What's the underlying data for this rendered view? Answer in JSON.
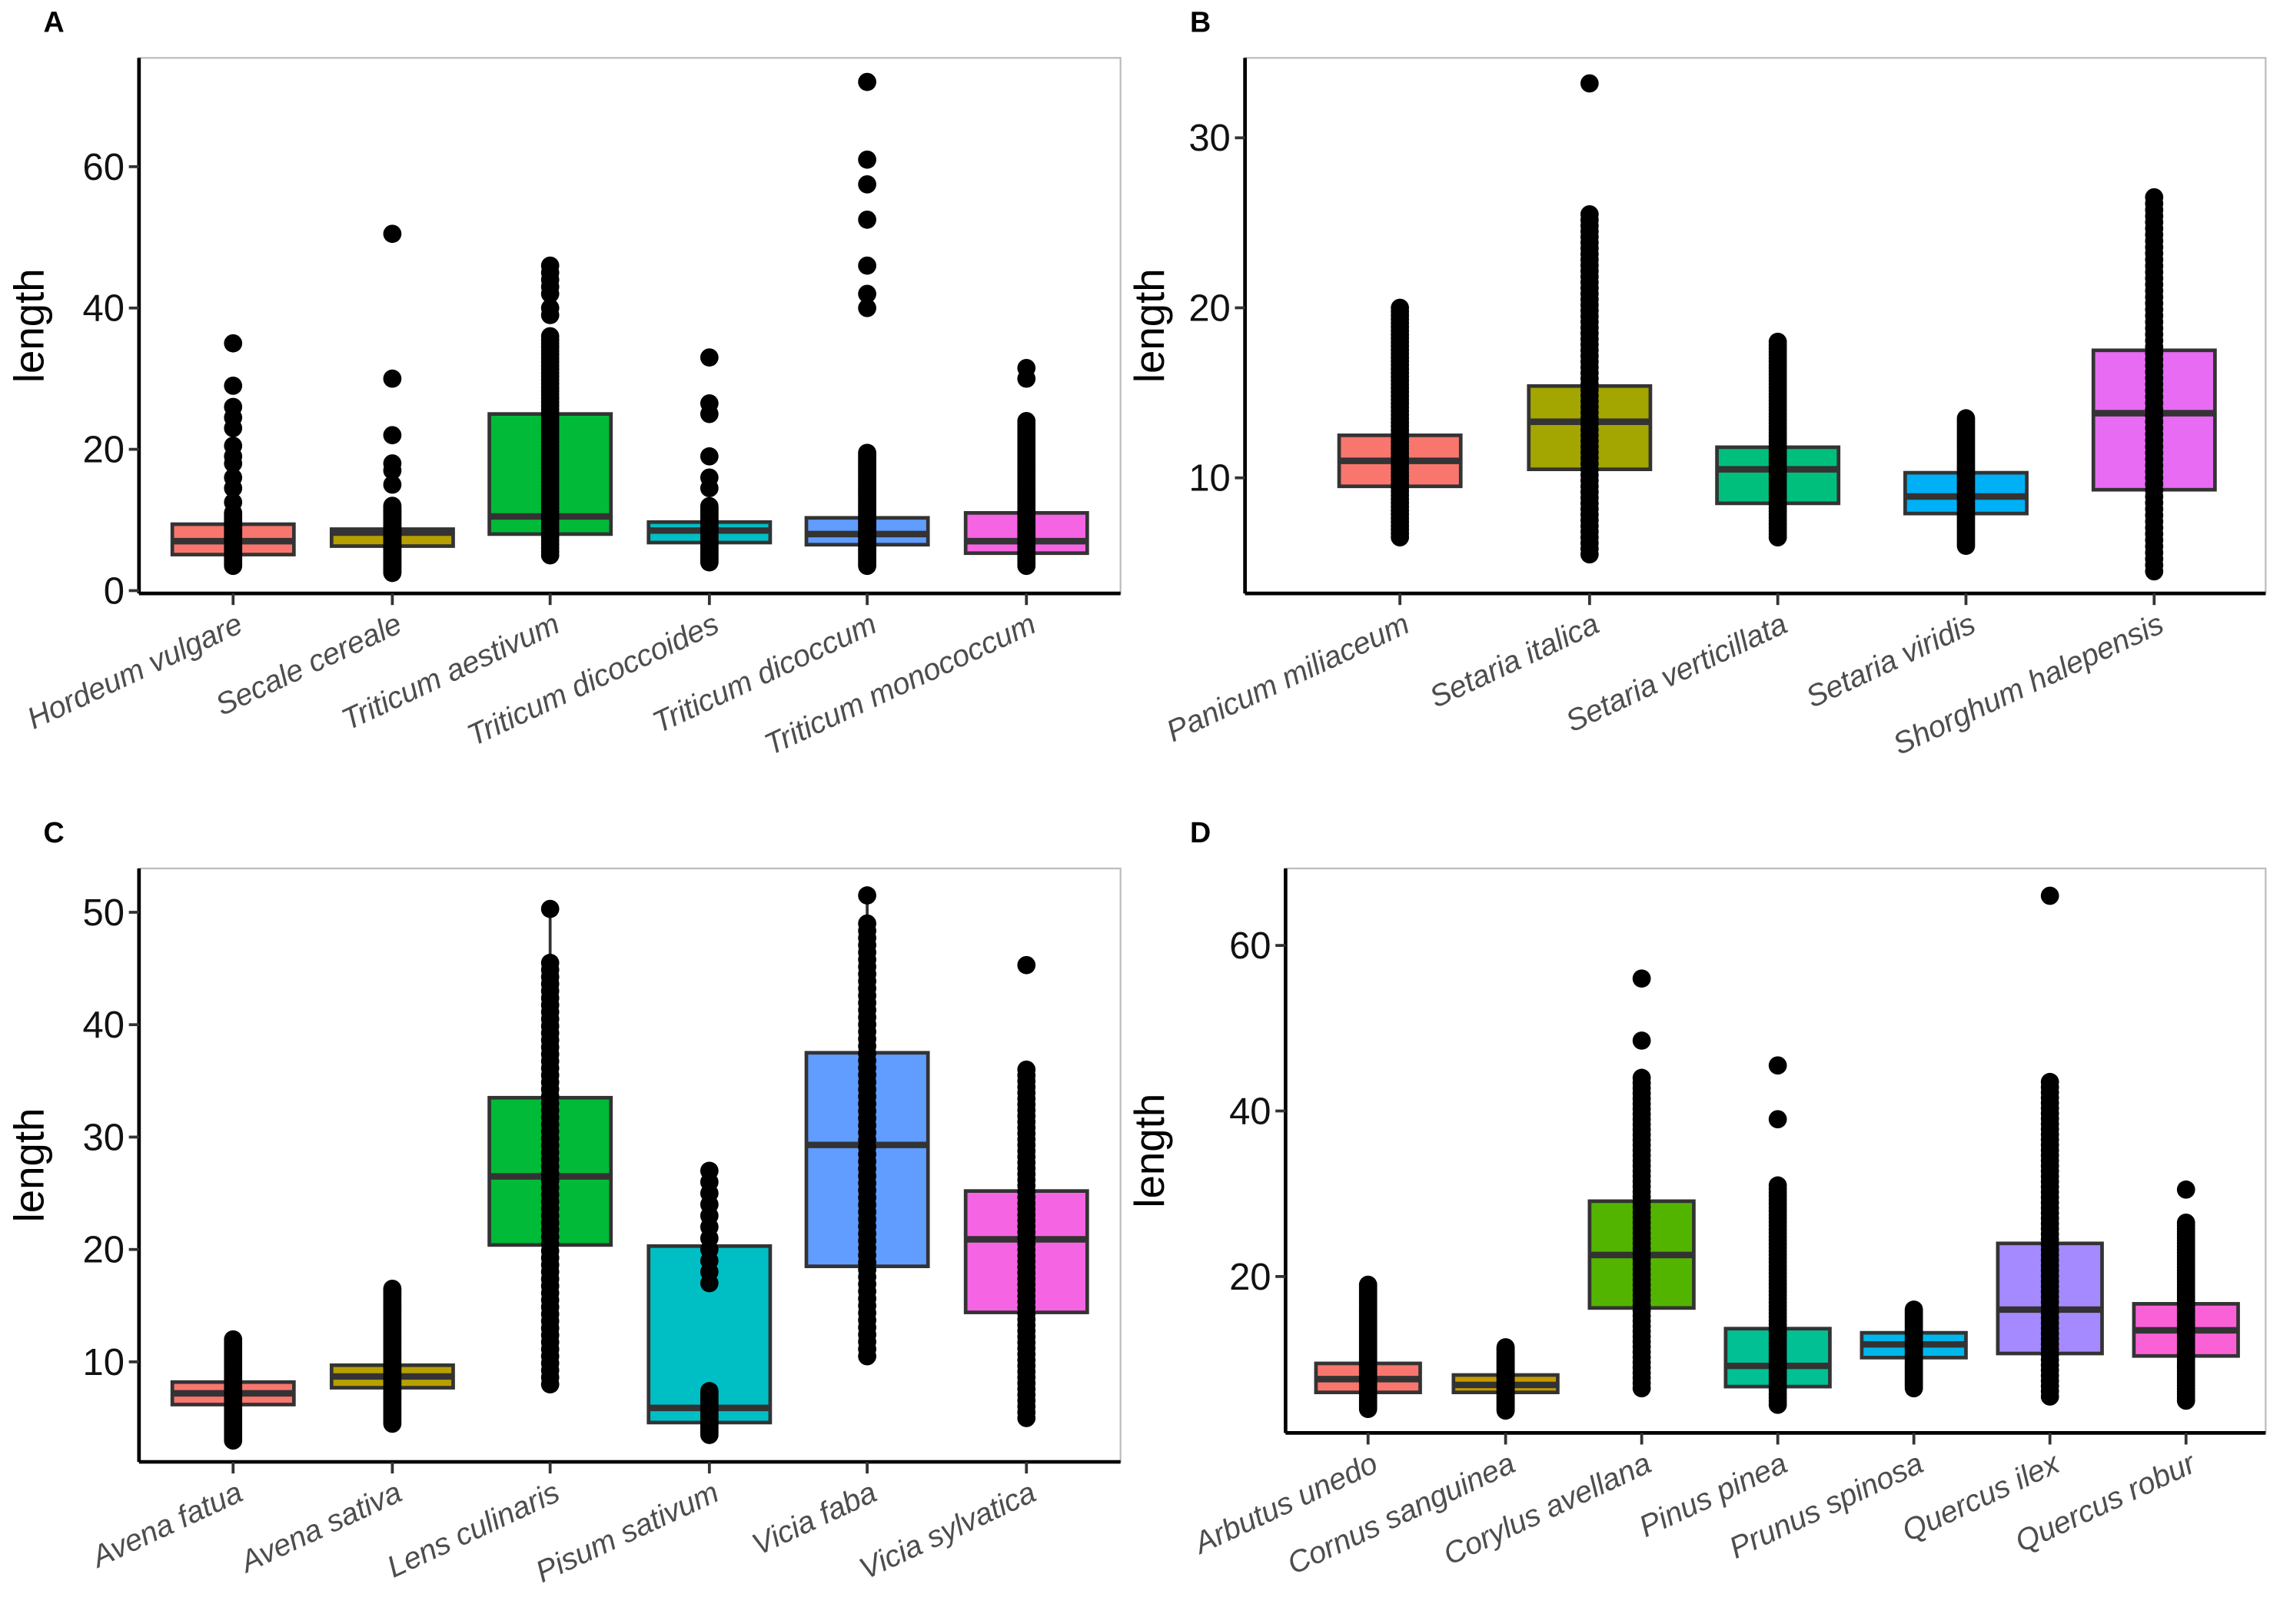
{
  "chart_data": [
    {
      "panel": "A",
      "type": "box",
      "ylabel": "length",
      "xlabel": "",
      "ylim": [
        -0.4,
        75.4
      ],
      "yticks": [
        0,
        20,
        40,
        60
      ],
      "grid": false,
      "categories": [
        "Hordeum vulgare",
        "Secale cereale",
        "Triticum aestivum",
        "Triticum dicoccoides",
        "Triticum dicoccum",
        "Triticum monococcum"
      ],
      "colors": [
        "#F8766D",
        "#B79F00",
        "#00BA38",
        "#00BFC4",
        "#619CFF",
        "#F564E3"
      ],
      "boxes": [
        {
          "q1": 5.1,
          "median": 7,
          "q3": 9.4,
          "whisker_low": 3.5,
          "whisker_high": 11,
          "points_dense": [
            3.5,
            11
          ],
          "points": [
            12.5,
            14.5,
            16,
            18,
            19,
            20.5,
            23,
            24.5,
            26,
            29,
            35
          ]
        },
        {
          "q1": 6.3,
          "median": 8.2,
          "q3": 8.7,
          "whisker_low": 2.5,
          "whisker_high": 12,
          "points_dense": [
            2.5,
            12
          ],
          "points": [
            15,
            17,
            18,
            22,
            30,
            50.5
          ]
        },
        {
          "q1": 8,
          "median": 10.5,
          "q3": 25,
          "whisker_low": 5,
          "whisker_high": 37,
          "points_dense": [
            5,
            36
          ],
          "points": [
            39,
            40,
            42,
            43,
            44,
            45,
            46
          ]
        },
        {
          "q1": 6.8,
          "median": 8.5,
          "q3": 9.7,
          "whisker_low": 4,
          "whisker_high": 12,
          "points_dense": [
            4,
            12
          ],
          "points": [
            14.5,
            16,
            19,
            25,
            26.5,
            33
          ]
        },
        {
          "q1": 6.5,
          "median": 8,
          "q3": 10.3,
          "whisker_low": 3.5,
          "whisker_high": 15.5,
          "points_dense": [
            3.5,
            19.5
          ],
          "points": [
            40,
            42,
            46,
            52.5,
            57.5,
            61,
            72
          ]
        },
        {
          "q1": 5.3,
          "median": 7,
          "q3": 11,
          "whisker_low": 3.5,
          "whisker_high": 19,
          "points_dense": [
            3.5,
            24
          ],
          "points": [
            30,
            31.5
          ]
        }
      ]
    },
    {
      "panel": "B",
      "type": "box",
      "ylabel": "length",
      "xlabel": "",
      "ylim": [
        3.2,
        34.7
      ],
      "yticks": [
        10,
        20,
        30
      ],
      "grid": false,
      "categories": [
        "Panicum miliaceum",
        "Setaria italica",
        "Setaria verticillata",
        "Setaria viridis",
        "Shorghum halepensis"
      ],
      "colors": [
        "#F8766D",
        "#A3A500",
        "#00BF7D",
        "#00B0F6",
        "#E76BF3"
      ],
      "boxes": [
        {
          "q1": 9.5,
          "median": 11,
          "q3": 12.5,
          "whisker_low": 6.5,
          "whisker_high": 17,
          "points_dense": [
            6.5,
            20
          ],
          "points": []
        },
        {
          "q1": 10.5,
          "median": 13.3,
          "q3": 15.4,
          "whisker_low": 5.5,
          "whisker_high": 22.5,
          "points_dense": [
            5.5,
            25.5
          ],
          "points": [
            33.2
          ]
        },
        {
          "q1": 8.5,
          "median": 10.5,
          "q3": 11.8,
          "whisker_low": 6.5,
          "whisker_high": 16.5,
          "points_dense": [
            6.5,
            18
          ],
          "points": []
        },
        {
          "q1": 7.9,
          "median": 8.9,
          "q3": 10.3,
          "whisker_low": 6,
          "whisker_high": 13.5,
          "points_dense": [
            6,
            13.5
          ],
          "points": []
        },
        {
          "q1": 9.3,
          "median": 13.8,
          "q3": 17.5,
          "whisker_low": 4.5,
          "whisker_high": 26.5,
          "points_dense": [
            4.5,
            26.5
          ],
          "points": []
        }
      ]
    },
    {
      "panel": "C",
      "type": "box",
      "ylabel": "length",
      "xlabel": "",
      "ylim": [
        1.1,
        53.9
      ],
      "yticks": [
        10,
        20,
        30,
        40,
        50
      ],
      "grid": false,
      "categories": [
        "Avena fatua",
        "Avena sativa",
        "Lens culinaris",
        "Pisum sativum",
        "Vicia faba",
        "Vicia sylvatica"
      ],
      "colors": [
        "#F8766D",
        "#B79F00",
        "#00BA38",
        "#00BFC4",
        "#619CFF",
        "#F564E3"
      ],
      "boxes": [
        {
          "q1": 6.2,
          "median": 7.2,
          "q3": 8.2,
          "whisker_low": 3,
          "whisker_high": 11.5,
          "points_dense": [
            3,
            12
          ],
          "points": []
        },
        {
          "q1": 7.7,
          "median": 8.7,
          "q3": 9.7,
          "whisker_low": 4.5,
          "whisker_high": 12.5,
          "points_dense": [
            4.5,
            16.5
          ],
          "points": []
        },
        {
          "q1": 20.4,
          "median": 26.5,
          "q3": 33.5,
          "whisker_low": 8,
          "whisker_high": 50.3,
          "points_dense": [
            8,
            45.5
          ],
          "points": [
            50.3
          ]
        },
        {
          "q1": 4.6,
          "median": 5.9,
          "q3": 20.3,
          "whisker_low": 3.5,
          "whisker_high": 27,
          "points_dense": [
            3.5,
            7.5
          ],
          "points": [
            17,
            18,
            19,
            20,
            21,
            22,
            23,
            24,
            25,
            26,
            27
          ]
        },
        {
          "q1": 18.5,
          "median": 29.3,
          "q3": 37.5,
          "whisker_low": 10.5,
          "whisker_high": 51.5,
          "points_dense": [
            10.5,
            49
          ],
          "points": [
            51.5
          ]
        },
        {
          "q1": 14.4,
          "median": 20.9,
          "q3": 25.2,
          "whisker_low": 5,
          "whisker_high": 36,
          "points_dense": [
            5,
            36
          ],
          "points": [
            45.3
          ]
        }
      ]
    },
    {
      "panel": "D",
      "type": "box",
      "ylabel": "length",
      "xlabel": "",
      "ylim": [
        1.1,
        69.3
      ],
      "yticks": [
        20,
        40,
        60
      ],
      "grid": false,
      "categories": [
        "Arbutus unedo",
        "Cornus sanguinea",
        "Corylus avellana",
        "Pinus pinea",
        "Prunus spinosa",
        "Quercus ilex",
        "Quercus robur"
      ],
      "colors": [
        "#F8766D",
        "#C49A00",
        "#53B400",
        "#00C094",
        "#00B6EB",
        "#A58AFF",
        "#FB61D7"
      ],
      "boxes": [
        {
          "q1": 6,
          "median": 7.6,
          "q3": 9.5,
          "whisker_low": 4,
          "whisker_high": 14.5,
          "points_dense": [
            4,
            19
          ],
          "points": []
        },
        {
          "q1": 6,
          "median": 6.9,
          "q3": 8.1,
          "whisker_low": 3.8,
          "whisker_high": 11,
          "points_dense": [
            3.8,
            11.5
          ],
          "points": []
        },
        {
          "q1": 16.2,
          "median": 22.6,
          "q3": 29.1,
          "whisker_low": 6.5,
          "whisker_high": 44,
          "points_dense": [
            6.5,
            44
          ],
          "points": [
            48.5,
            56
          ]
        },
        {
          "q1": 6.7,
          "median": 9.2,
          "q3": 13.7,
          "whisker_low": 4.5,
          "whisker_high": 20.5,
          "points_dense": [
            4.5,
            31
          ],
          "points": [
            39,
            45.5
          ]
        },
        {
          "q1": 10.2,
          "median": 11.8,
          "q3": 13.2,
          "whisker_low": 6.5,
          "whisker_high": 16,
          "points_dense": [
            6.5,
            16
          ],
          "points": []
        },
        {
          "q1": 10.7,
          "median": 16,
          "q3": 24,
          "whisker_low": 5.5,
          "whisker_high": 38,
          "points_dense": [
            5.5,
            43.5
          ],
          "points": [
            66
          ]
        },
        {
          "q1": 10.4,
          "median": 13.5,
          "q3": 16.7,
          "whisker_low": 5,
          "whisker_high": 26.5,
          "points_dense": [
            5,
            26.5
          ],
          "points": [
            30.5
          ]
        }
      ]
    }
  ]
}
